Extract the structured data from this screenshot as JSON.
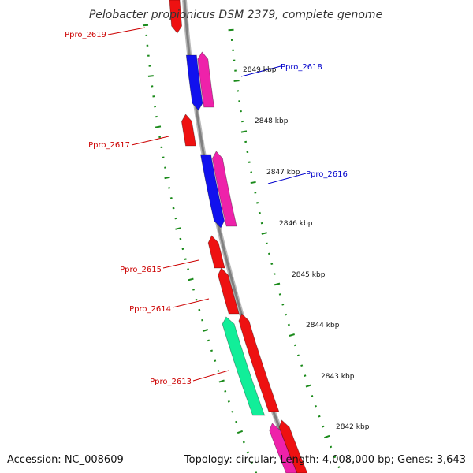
{
  "title": "Pelobacter propionicus DSM 2379, complete genome",
  "footer": {
    "accession": "Accession: NC_008609",
    "summary": "Topology: circular; Length: 4,008,000 bp; Genes: 3,643"
  },
  "colors": {
    "backbone": "#808080",
    "tick_green": "#1a8a1a",
    "label_red": "#cc0000",
    "label_blue": "#0000cc",
    "gene_red": "#ee1111",
    "gene_blue": "#1111ee",
    "gene_pink": "#ee22aa",
    "gene_cyan": "#11ee99"
  },
  "kbp_ticks": [
    {
      "label": "2849 kbp"
    },
    {
      "label": "2848 kbp"
    },
    {
      "label": "2847 kbp"
    },
    {
      "label": "2846 kbp"
    },
    {
      "label": "2845 kbp"
    },
    {
      "label": "2844 kbp"
    },
    {
      "label": "2843 kbp"
    },
    {
      "label": "2842 kbp"
    }
  ],
  "gene_labels": [
    {
      "name": "Ppro_2619",
      "strand": "minus"
    },
    {
      "name": "Ppro_2618",
      "strand": "plus"
    },
    {
      "name": "Ppro_2617",
      "strand": "minus"
    },
    {
      "name": "Ppro_2616",
      "strand": "plus"
    },
    {
      "name": "Ppro_2615",
      "strand": "minus"
    },
    {
      "name": "Ppro_2614",
      "strand": "minus"
    },
    {
      "name": "Ppro_2613",
      "strand": "minus"
    }
  ]
}
